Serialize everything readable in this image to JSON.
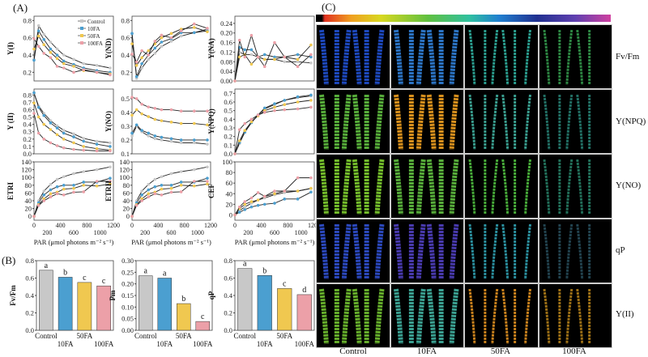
{
  "panels": {
    "a": "(A)",
    "b": "(B)",
    "c": "(C)"
  },
  "colors": {
    "Control": "#c8c8c8",
    "10FA": "#4b9fd0",
    "50FA": "#f0c850",
    "100FA": "#eca0a8"
  },
  "legend": [
    "Control",
    "10FA",
    "50FA",
    "100FA"
  ],
  "chart_data": [
    {
      "type": "line",
      "ylabel": "Y(I)",
      "xlabel": "",
      "x": [
        0,
        70,
        150,
        250,
        350,
        450,
        600,
        750,
        950,
        1150
      ],
      "xlim": [
        0,
        1200
      ],
      "ylim": [
        0.1,
        0.85
      ],
      "yticks": [
        "0.2",
        "0.4",
        "0.6",
        "0.8"
      ],
      "ytickvals": [
        0.2,
        0.4,
        0.6,
        0.8
      ],
      "legend": "top-right",
      "series": [
        {
          "name": "Control",
          "values": [
            0.35,
            0.74,
            0.64,
            0.55,
            0.47,
            0.4,
            0.35,
            0.3,
            0.28,
            0.25
          ]
        },
        {
          "name": "10FA",
          "values": [
            0.34,
            0.68,
            0.58,
            0.47,
            0.4,
            0.33,
            0.29,
            0.25,
            0.22,
            0.2
          ]
        },
        {
          "name": "50FA",
          "values": [
            0.47,
            0.62,
            0.52,
            0.43,
            0.36,
            0.3,
            0.27,
            0.22,
            0.2,
            0.18
          ]
        },
        {
          "name": "100FA",
          "values": [
            0.59,
            0.5,
            0.42,
            0.37,
            0.27,
            0.25,
            0.2,
            0.23,
            0.2,
            0.17
          ]
        }
      ]
    },
    {
      "type": "line",
      "ylabel": "Y(ND)",
      "xlabel": "",
      "x": [
        0,
        70,
        150,
        250,
        350,
        450,
        600,
        750,
        950,
        1150
      ],
      "xlim": [
        0,
        1200
      ],
      "ylim": [
        0.1,
        0.85
      ],
      "yticks": [
        "0.2",
        "0.4",
        "0.6",
        "0.8"
      ],
      "ytickvals": [
        0.2,
        0.4,
        0.6,
        0.8
      ],
      "series": [
        {
          "name": "Control",
          "values": [
            0.65,
            0.13,
            0.25,
            0.35,
            0.42,
            0.5,
            0.56,
            0.62,
            0.66,
            0.7
          ]
        },
        {
          "name": "10FA",
          "values": [
            0.65,
            0.15,
            0.3,
            0.4,
            0.48,
            0.55,
            0.59,
            0.66,
            0.66,
            0.68
          ]
        },
        {
          "name": "50FA",
          "values": [
            0.53,
            0.28,
            0.37,
            0.45,
            0.53,
            0.6,
            0.65,
            0.7,
            0.72,
            0.67
          ]
        },
        {
          "name": "100FA",
          "values": [
            0.41,
            0.32,
            0.45,
            0.4,
            0.56,
            0.63,
            0.6,
            0.68,
            0.76,
            0.71
          ]
        }
      ]
    },
    {
      "type": "line",
      "ylabel": "Y(NA)",
      "xlabel": "",
      "x": [
        0,
        70,
        150,
        250,
        350,
        450,
        600,
        750,
        950,
        1150
      ],
      "xlim": [
        0,
        1200
      ],
      "ylim": [
        0,
        0.27
      ],
      "yticks": [
        "0.00",
        "0.04",
        "0.08",
        "0.12",
        "0.16",
        "0.20",
        "0.24"
      ],
      "ytickvals": [
        0,
        0.04,
        0.08,
        0.12,
        0.16,
        0.2,
        0.24
      ],
      "series": [
        {
          "name": "Control",
          "values": [
            0,
            0.12,
            0.11,
            0.11,
            0.1,
            0.09,
            0.09,
            0.08,
            0.08,
            0.075
          ]
        },
        {
          "name": "10FA",
          "values": [
            0,
            0.14,
            0.13,
            0.13,
            0.1,
            0.11,
            0.1,
            0.1,
            0.11,
            0.1
          ]
        },
        {
          "name": "50FA",
          "values": [
            0,
            0.1,
            0.11,
            0.07,
            0.1,
            0.09,
            0.09,
            0.1,
            0.09,
            0.15
          ]
        },
        {
          "name": "100FA",
          "values": [
            0,
            0.17,
            0.1,
            0.19,
            0.1,
            0.06,
            0.16,
            0.1,
            0.06,
            0.11
          ]
        }
      ]
    },
    {
      "type": "line",
      "ylabel": "Y (II)",
      "xlabel": "",
      "x": [
        0,
        70,
        150,
        250,
        350,
        450,
        600,
        750,
        950,
        1150
      ],
      "xlim": [
        0,
        1200
      ],
      "ylim": [
        0,
        0.88
      ],
      "yticks": [
        "0.0",
        "0.1",
        "0.2",
        "0.3",
        "0.4",
        "0.5",
        "0.6",
        "0.7",
        "0.8"
      ],
      "ytickvals": [
        0,
        0.1,
        0.2,
        0.3,
        0.4,
        0.5,
        0.6,
        0.7,
        0.8
      ],
      "series": [
        {
          "name": "Control",
          "values": [
            0.82,
            0.65,
            0.55,
            0.45,
            0.38,
            0.32,
            0.27,
            0.21,
            0.17,
            0.15
          ]
        },
        {
          "name": "10FA",
          "values": [
            0.83,
            0.63,
            0.52,
            0.42,
            0.35,
            0.28,
            0.23,
            0.17,
            0.13,
            0.1
          ]
        },
        {
          "name": "50FA",
          "values": [
            0.69,
            0.5,
            0.4,
            0.33,
            0.26,
            0.2,
            0.15,
            0.1,
            0.07,
            0.05
          ]
        },
        {
          "name": "100FA",
          "values": [
            0.55,
            0.28,
            0.2,
            0.15,
            0.11,
            0.08,
            0.06,
            0.05,
            0.04,
            0.04
          ]
        }
      ]
    },
    {
      "type": "line",
      "ylabel": "Y(NO)",
      "xlabel": "",
      "x": [
        0,
        70,
        150,
        250,
        350,
        450,
        600,
        750,
        950,
        1150
      ],
      "xlim": [
        0,
        1200
      ],
      "ylim": [
        0.1,
        0.57
      ],
      "yticks": [
        "0.1",
        "0.2",
        "0.3",
        "0.4",
        "0.5"
      ],
      "ytickvals": [
        0.1,
        0.2,
        0.3,
        0.4,
        0.5
      ],
      "series": [
        {
          "name": "Control",
          "values": [
            0.23,
            0.3,
            0.26,
            0.23,
            0.21,
            0.2,
            0.19,
            0.18,
            0.18,
            0.17
          ]
        },
        {
          "name": "10FA",
          "values": [
            0.25,
            0.31,
            0.27,
            0.25,
            0.23,
            0.22,
            0.21,
            0.2,
            0.2,
            0.2
          ]
        },
        {
          "name": "50FA",
          "values": [
            0.38,
            0.42,
            0.39,
            0.37,
            0.35,
            0.34,
            0.33,
            0.32,
            0.32,
            0.31
          ]
        },
        {
          "name": "100FA",
          "values": [
            0.51,
            0.5,
            0.46,
            0.44,
            0.43,
            0.42,
            0.42,
            0.41,
            0.41,
            0.41
          ]
        }
      ]
    },
    {
      "type": "line",
      "ylabel": "Y(NPQ)",
      "xlabel": "",
      "x": [
        0,
        70,
        150,
        250,
        350,
        450,
        600,
        750,
        950,
        1150
      ],
      "xlim": [
        0,
        1200
      ],
      "ylim": [
        0,
        0.75
      ],
      "yticks": [
        "0.0",
        "0.1",
        "0.2",
        "0.3",
        "0.4",
        "0.5",
        "0.6",
        "0.7"
      ],
      "ytickvals": [
        0,
        0.1,
        0.2,
        0.3,
        0.4,
        0.5,
        0.6,
        0.7
      ],
      "series": [
        {
          "name": "Control",
          "values": [
            0,
            0.12,
            0.25,
            0.37,
            0.45,
            0.52,
            0.57,
            0.62,
            0.65,
            0.67
          ]
        },
        {
          "name": "10FA",
          "values": [
            0,
            0.13,
            0.25,
            0.36,
            0.45,
            0.53,
            0.58,
            0.62,
            0.66,
            0.68
          ]
        },
        {
          "name": "50FA",
          "values": [
            0,
            0.15,
            0.27,
            0.37,
            0.44,
            0.5,
            0.54,
            0.57,
            0.6,
            0.62
          ]
        },
        {
          "name": "100FA",
          "values": [
            0,
            0.28,
            0.35,
            0.4,
            0.45,
            0.48,
            0.5,
            0.51,
            0.52,
            0.54
          ]
        }
      ]
    },
    {
      "type": "line",
      "ylabel": "ETRI",
      "xlabel": "PAR (μmol photons m⁻² s⁻¹)",
      "x": [
        0,
        70,
        150,
        250,
        350,
        450,
        600,
        750,
        950,
        1150
      ],
      "xlim": [
        0,
        1200
      ],
      "ylim": [
        -10,
        140
      ],
      "xticks": [
        "0",
        "200",
        "400",
        "600",
        "800",
        "1000",
        "1200"
      ],
      "xtickvals": [
        0,
        200,
        400,
        600,
        800,
        1000,
        1200
      ],
      "yticks": [
        "0",
        "20",
        "40",
        "60",
        "80",
        "100",
        "120",
        "140"
      ],
      "ytickvals": [
        0,
        20,
        40,
        60,
        80,
        100,
        120,
        140
      ],
      "series": [
        {
          "name": "Control",
          "values": [
            0,
            40,
            65,
            82,
            95,
            102,
            110,
            115,
            120,
            127
          ]
        },
        {
          "name": "10FA",
          "values": [
            0,
            35,
            55,
            68,
            76,
            80,
            80,
            88,
            88,
            98
          ]
        },
        {
          "name": "50FA",
          "values": [
            0,
            30,
            45,
            58,
            62,
            70,
            72,
            80,
            78,
            83
          ]
        },
        {
          "name": "100FA",
          "values": [
            0,
            28,
            40,
            50,
            58,
            55,
            62,
            63,
            90,
            90
          ]
        }
      ]
    },
    {
      "type": "line",
      "ylabel": "ETRII",
      "xlabel": "PAR (μmol photons m⁻² s⁻¹)",
      "x": [
        0,
        70,
        150,
        250,
        350,
        450,
        600,
        750,
        950,
        1150
      ],
      "xlim": [
        0,
        1200
      ],
      "ylim": [
        -10,
        140
      ],
      "xticks": [
        "0",
        "200",
        "400",
        "600",
        "800",
        "1000",
        "1200"
      ],
      "xtickvals": [
        0,
        200,
        400,
        600,
        800,
        1000,
        1200
      ],
      "yticks": [
        "0",
        "20",
        "40",
        "60",
        "80",
        "100",
        "120",
        "140"
      ],
      "ytickvals": [
        0,
        20,
        40,
        60,
        80,
        100,
        120,
        140
      ],
      "series": [
        {
          "name": "Control",
          "values": [
            0,
            40,
            65,
            82,
            95,
            102,
            110,
            115,
            120,
            127
          ]
        },
        {
          "name": "10FA",
          "values": [
            0,
            35,
            55,
            68,
            76,
            80,
            80,
            88,
            88,
            98
          ]
        },
        {
          "name": "50FA",
          "values": [
            0,
            30,
            45,
            58,
            62,
            70,
            72,
            80,
            78,
            83
          ]
        },
        {
          "name": "100FA",
          "values": [
            0,
            28,
            40,
            50,
            58,
            55,
            62,
            63,
            90,
            90
          ]
        }
      ]
    },
    {
      "type": "line",
      "ylabel": "CEF",
      "xlabel": "PAR (μmol photons m⁻² s⁻¹)",
      "x": [
        0,
        70,
        150,
        250,
        350,
        450,
        600,
        750,
        950,
        1150
      ],
      "xlim": [
        0,
        1200
      ],
      "ylim": [
        -10,
        100
      ],
      "xticks": [
        "0",
        "200",
        "400",
        "600",
        "800",
        "1000",
        "1200"
      ],
      "xtickvals": [
        0,
        200,
        400,
        600,
        800,
        1000,
        1200
      ],
      "yticks": [
        "0",
        "20",
        "40",
        "60",
        "80",
        "100"
      ],
      "ytickvals": [
        0,
        20,
        40,
        60,
        80,
        100
      ],
      "series": [
        {
          "name": "Control",
          "values": [
            0,
            8,
            15,
            22,
            28,
            32,
            38,
            42,
            45,
            50
          ]
        },
        {
          "name": "10FA",
          "values": [
            0,
            5,
            10,
            15,
            18,
            20,
            22,
            30,
            30,
            43
          ]
        },
        {
          "name": "50FA",
          "values": [
            0,
            12,
            20,
            25,
            28,
            35,
            40,
            45,
            45,
            50
          ]
        },
        {
          "name": "100FA",
          "values": [
            0,
            15,
            25,
            32,
            42,
            35,
            45,
            45,
            70,
            70
          ]
        }
      ]
    },
    {
      "type": "bar",
      "ylabel": "Fv/Fm",
      "categories": [
        "Control",
        "10FA",
        "50FA",
        "100FA"
      ],
      "values": [
        0.69,
        0.61,
        0.55,
        0.51
      ],
      "letters": [
        "a",
        "b",
        "c",
        "c"
      ],
      "ylim": [
        0,
        0.8
      ],
      "yticks": [
        "0.0",
        "0.2",
        "0.4",
        "0.6",
        "0.8"
      ],
      "ytickvals": [
        0,
        0.2,
        0.4,
        0.6,
        0.8
      ]
    },
    {
      "type": "bar",
      "ylabel": "Pm",
      "categories": [
        "Control",
        "10FA",
        "50FA",
        "100FA"
      ],
      "values": [
        0.235,
        0.225,
        0.115,
        0.038
      ],
      "letters": [
        "a",
        "a",
        "b",
        "c"
      ],
      "ylim": [
        0,
        0.3
      ],
      "yticks": [
        "0.00",
        "0.05",
        "0.10",
        "0.15",
        "0.20",
        "0.25",
        "0.30"
      ],
      "ytickvals": [
        0,
        0.05,
        0.1,
        0.15,
        0.2,
        0.25,
        0.3
      ]
    },
    {
      "type": "bar",
      "ylabel": "qP",
      "categories": [
        "Control",
        "10FA",
        "50FA",
        "100FA"
      ],
      "values": [
        0.71,
        0.63,
        0.48,
        0.41
      ],
      "letters": [
        "a",
        "b",
        "c",
        "d"
      ],
      "ylim": [
        0,
        0.8
      ],
      "yticks": [
        "0.0",
        "0.2",
        "0.4",
        "0.6",
        "0.8"
      ],
      "ytickvals": [
        0,
        0.2,
        0.4,
        0.6,
        0.8
      ]
    }
  ],
  "imaging": {
    "rows": [
      "Fv/Fm",
      "Y(NPQ)",
      "Y(NO)",
      "qP",
      "Y(II)"
    ],
    "cols": [
      "Control",
      "10FA",
      "50FA",
      "100FA"
    ]
  }
}
